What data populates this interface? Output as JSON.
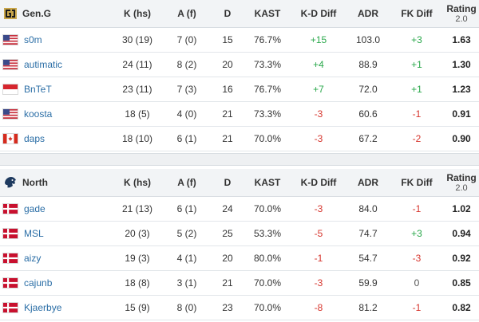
{
  "columns": {
    "k": "K (hs)",
    "a": "A (f)",
    "d": "D",
    "kast": "KAST",
    "kd": "K-D Diff",
    "adr": "ADR",
    "fk": "FK Diff",
    "rating": "Rating",
    "rating_sub": "2.0"
  },
  "teams": [
    {
      "name": "Gen.G",
      "logo_icon": "geng-logo-icon",
      "players": [
        {
          "name": "s0m",
          "flag": "us",
          "k": "30 (19)",
          "a": "7 (0)",
          "d": "15",
          "kast": "76.7%",
          "kd": "+15",
          "kd_sign": "pos",
          "adr": "103.0",
          "fk": "+3",
          "fk_sign": "pos",
          "rating": "1.63"
        },
        {
          "name": "autimatic",
          "flag": "us",
          "k": "24 (11)",
          "a": "8 (2)",
          "d": "20",
          "kast": "73.3%",
          "kd": "+4",
          "kd_sign": "pos",
          "adr": "88.9",
          "fk": "+1",
          "fk_sign": "pos",
          "rating": "1.30"
        },
        {
          "name": "BnTeT",
          "flag": "id",
          "k": "23 (11)",
          "a": "7 (3)",
          "d": "16",
          "kast": "76.7%",
          "kd": "+7",
          "kd_sign": "pos",
          "adr": "72.0",
          "fk": "+1",
          "fk_sign": "pos",
          "rating": "1.23"
        },
        {
          "name": "koosta",
          "flag": "us",
          "k": "18 (5)",
          "a": "4 (0)",
          "d": "21",
          "kast": "73.3%",
          "kd": "-3",
          "kd_sign": "neg",
          "adr": "60.6",
          "fk": "-1",
          "fk_sign": "neg",
          "rating": "0.91"
        },
        {
          "name": "daps",
          "flag": "ca",
          "k": "18 (10)",
          "a": "6 (1)",
          "d": "21",
          "kast": "70.0%",
          "kd": "-3",
          "kd_sign": "neg",
          "adr": "67.2",
          "fk": "-2",
          "fk_sign": "neg",
          "rating": "0.90"
        }
      ]
    },
    {
      "name": "North",
      "logo_icon": "north-logo-icon",
      "players": [
        {
          "name": "gade",
          "flag": "dk",
          "k": "21 (13)",
          "a": "6 (1)",
          "d": "24",
          "kast": "70.0%",
          "kd": "-3",
          "kd_sign": "neg",
          "adr": "84.0",
          "fk": "-1",
          "fk_sign": "neg",
          "rating": "1.02"
        },
        {
          "name": "MSL",
          "flag": "dk",
          "k": "20 (3)",
          "a": "5 (2)",
          "d": "25",
          "kast": "53.3%",
          "kd": "-5",
          "kd_sign": "neg",
          "adr": "74.7",
          "fk": "+3",
          "fk_sign": "pos",
          "rating": "0.94"
        },
        {
          "name": "aizy",
          "flag": "dk",
          "k": "19 (3)",
          "a": "4 (1)",
          "d": "20",
          "kast": "80.0%",
          "kd": "-1",
          "kd_sign": "neg",
          "adr": "54.7",
          "fk": "-3",
          "fk_sign": "neg",
          "rating": "0.92"
        },
        {
          "name": "cajunb",
          "flag": "dk",
          "k": "18 (8)",
          "a": "3 (1)",
          "d": "21",
          "kast": "70.0%",
          "kd": "-3",
          "kd_sign": "neg",
          "adr": "59.9",
          "fk": "0",
          "fk_sign": "zero",
          "rating": "0.85"
        },
        {
          "name": "Kjaerbye",
          "flag": "dk",
          "k": "15 (9)",
          "a": "8 (0)",
          "d": "23",
          "kast": "70.0%",
          "kd": "-8",
          "kd_sign": "neg",
          "adr": "81.2",
          "fk": "-1",
          "fk_sign": "neg",
          "rating": "0.82"
        }
      ]
    }
  ],
  "colors": {
    "positive": "#2aa84b",
    "negative": "#d6342c",
    "link": "#2b6ea6"
  }
}
